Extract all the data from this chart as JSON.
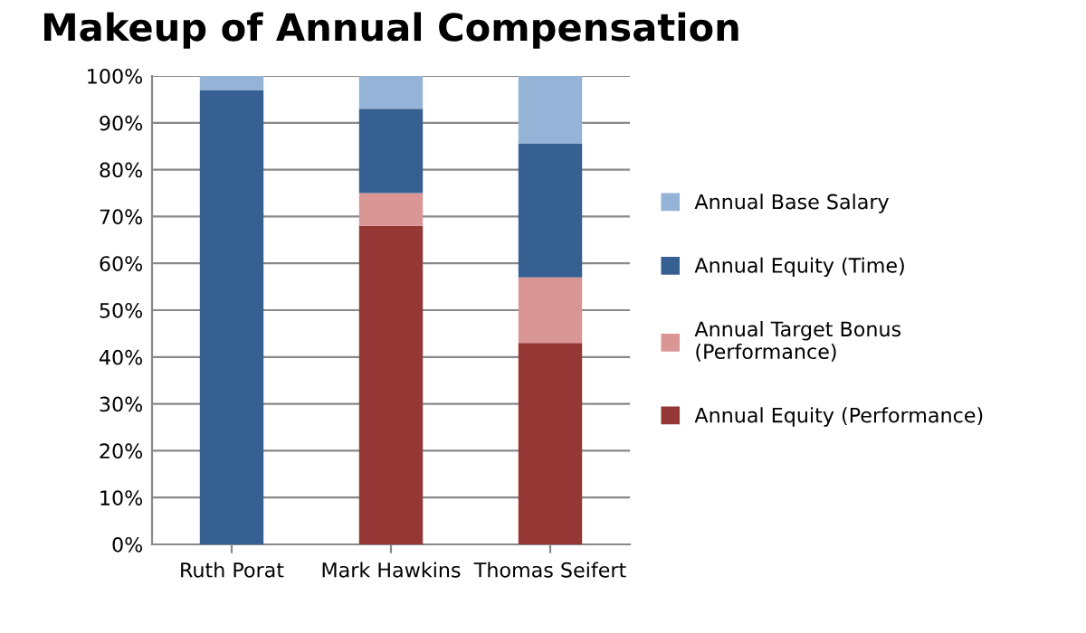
{
  "chart_data": {
    "type": "bar",
    "stacked": true,
    "title": "Makeup of Annual Compensation",
    "categories": [
      "Ruth Porat",
      "Mark Hawkins",
      "Thomas Seifert"
    ],
    "series": [
      {
        "name": "Annual Equity (Performance)",
        "color": "#953735",
        "values": [
          0,
          68,
          43
        ]
      },
      {
        "name": "Annual Target Bonus (Performance)",
        "color": "#d99694",
        "values": [
          0,
          7,
          14
        ]
      },
      {
        "name": "Annual Equity (Time)",
        "color": "#366092",
        "values": [
          97,
          18,
          28.5
        ]
      },
      {
        "name": "Annual Base Salary",
        "color": "#95b3d7",
        "values": [
          3,
          7,
          14.5
        ]
      }
    ],
    "ylim": [
      0,
      100
    ],
    "yticks": [
      {
        "value": 0,
        "label": "0%"
      },
      {
        "value": 10,
        "label": "10%"
      },
      {
        "value": 20,
        "label": "20%"
      },
      {
        "value": 30,
        "label": "30%"
      },
      {
        "value": 40,
        "label": "40%"
      },
      {
        "value": 50,
        "label": "50%"
      },
      {
        "value": 60,
        "label": "60%"
      },
      {
        "value": 70,
        "label": "70%"
      },
      {
        "value": 80,
        "label": "80%"
      },
      {
        "value": 90,
        "label": "90%"
      },
      {
        "value": 100,
        "label": "100%"
      }
    ],
    "grid": "y",
    "legend": "right"
  }
}
